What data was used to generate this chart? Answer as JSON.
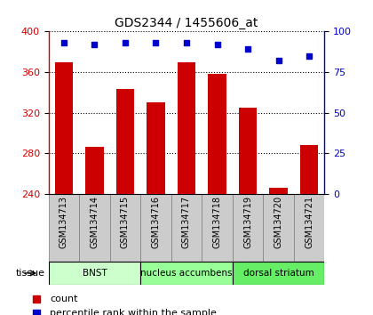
{
  "title": "GDS2344 / 1455606_at",
  "samples": [
    "GSM134713",
    "GSM134714",
    "GSM134715",
    "GSM134716",
    "GSM134717",
    "GSM134718",
    "GSM134719",
    "GSM134720",
    "GSM134721"
  ],
  "counts": [
    370,
    286,
    343,
    330,
    370,
    358,
    325,
    246,
    288
  ],
  "percentiles": [
    93,
    92,
    93,
    93,
    93,
    92,
    89,
    82,
    85
  ],
  "bar_color": "#cc0000",
  "dot_color": "#0000cc",
  "ylim_left": [
    240,
    400
  ],
  "ylim_right": [
    0,
    100
  ],
  "yticks_left": [
    240,
    280,
    320,
    360,
    400
  ],
  "yticks_right": [
    0,
    25,
    50,
    75,
    100
  ],
  "groups": [
    {
      "label": "BNST",
      "start": 0,
      "end": 3,
      "color": "#ccffcc"
    },
    {
      "label": "nucleus accumbens",
      "start": 3,
      "end": 6,
      "color": "#99ff99"
    },
    {
      "label": "dorsal striatum",
      "start": 6,
      "end": 9,
      "color": "#66ee66"
    }
  ],
  "tissue_label": "tissue",
  "legend_count": "count",
  "legend_pct": "percentile rank within the sample",
  "sample_label_bg": "#cccccc",
  "grid_color": "#000000"
}
